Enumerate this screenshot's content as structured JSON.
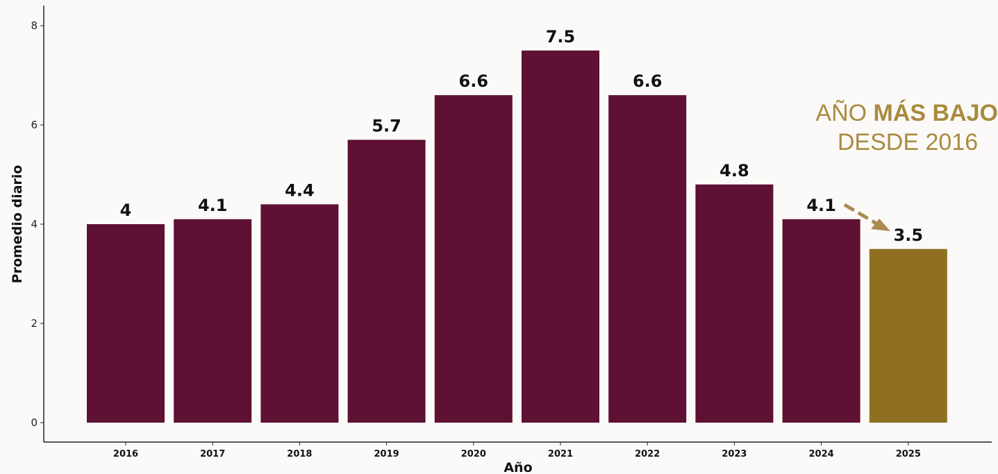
{
  "chart_data": {
    "type": "bar",
    "categories": [
      "2016",
      "2017",
      "2018",
      "2019",
      "2020",
      "2021",
      "2022",
      "2023",
      "2024",
      "2025"
    ],
    "values": [
      4,
      4.1,
      4.4,
      5.7,
      6.6,
      7.5,
      6.6,
      4.8,
      4.1,
      3.5
    ],
    "data_labels": [
      "4",
      "4.1",
      "4.4",
      "5.7",
      "6.6",
      "7.5",
      "6.6",
      "4.8",
      "4.1",
      "3.5"
    ],
    "xlabel": "Año",
    "ylabel": "Promedio diario",
    "ylim": [
      0,
      8
    ],
    "yticks": [
      0,
      2,
      4,
      6,
      8
    ],
    "grid": false,
    "bar_color": "#5e1132",
    "highlight_color": "#8f6f22",
    "highlight_category": "2025",
    "arrow_color": "#a98b4f"
  },
  "callout": {
    "prefix": "AÑO ",
    "bold": "MÁS BAJO",
    "line2": "DESDE 2016",
    "color": "#a98b3f"
  }
}
